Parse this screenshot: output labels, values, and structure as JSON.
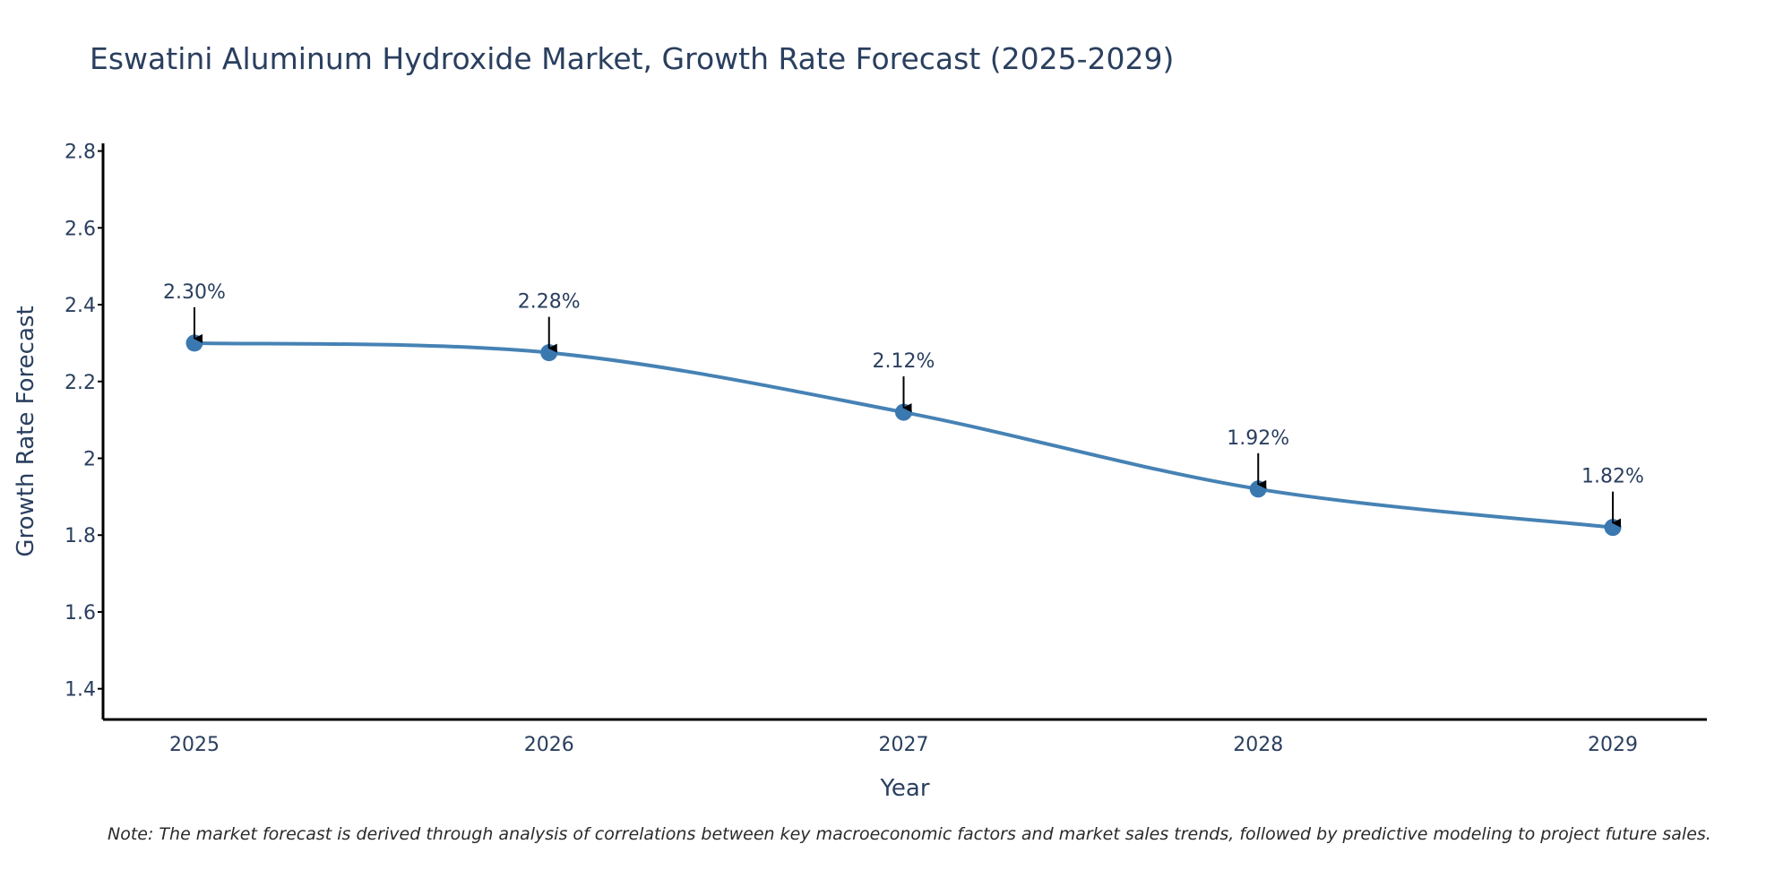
{
  "chart_data": {
    "type": "line",
    "title": "Eswatini Aluminum Hydroxide Market, Growth Rate Forecast (2025-2029)",
    "xlabel": "Year",
    "ylabel": "Growth Rate Forecast",
    "categories": [
      "2025",
      "2026",
      "2027",
      "2028",
      "2029"
    ],
    "series": [
      {
        "name": "Growth Rate Forecast",
        "values": [
          2.3,
          2.275,
          2.12,
          1.92,
          1.82
        ]
      }
    ],
    "annotations": [
      "2.30%",
      "2.28%",
      "2.12%",
      "1.92%",
      "1.82%"
    ],
    "ylim": [
      1.32,
      2.82
    ],
    "yticks": [
      1.4,
      1.6,
      1.8,
      2,
      2.2,
      2.4,
      2.6,
      2.8
    ],
    "ytick_labels": [
      "1.4",
      "1.6",
      "1.8",
      "2",
      "2.2",
      "2.4",
      "2.6",
      "2.8"
    ],
    "line_color": "#4682b4",
    "marker_color": "#3a78b0",
    "note": "Note: The market forecast is derived through analysis of correlations between key macroeconomic factors and market sales trends, followed by predictive modeling to project future sales."
  }
}
